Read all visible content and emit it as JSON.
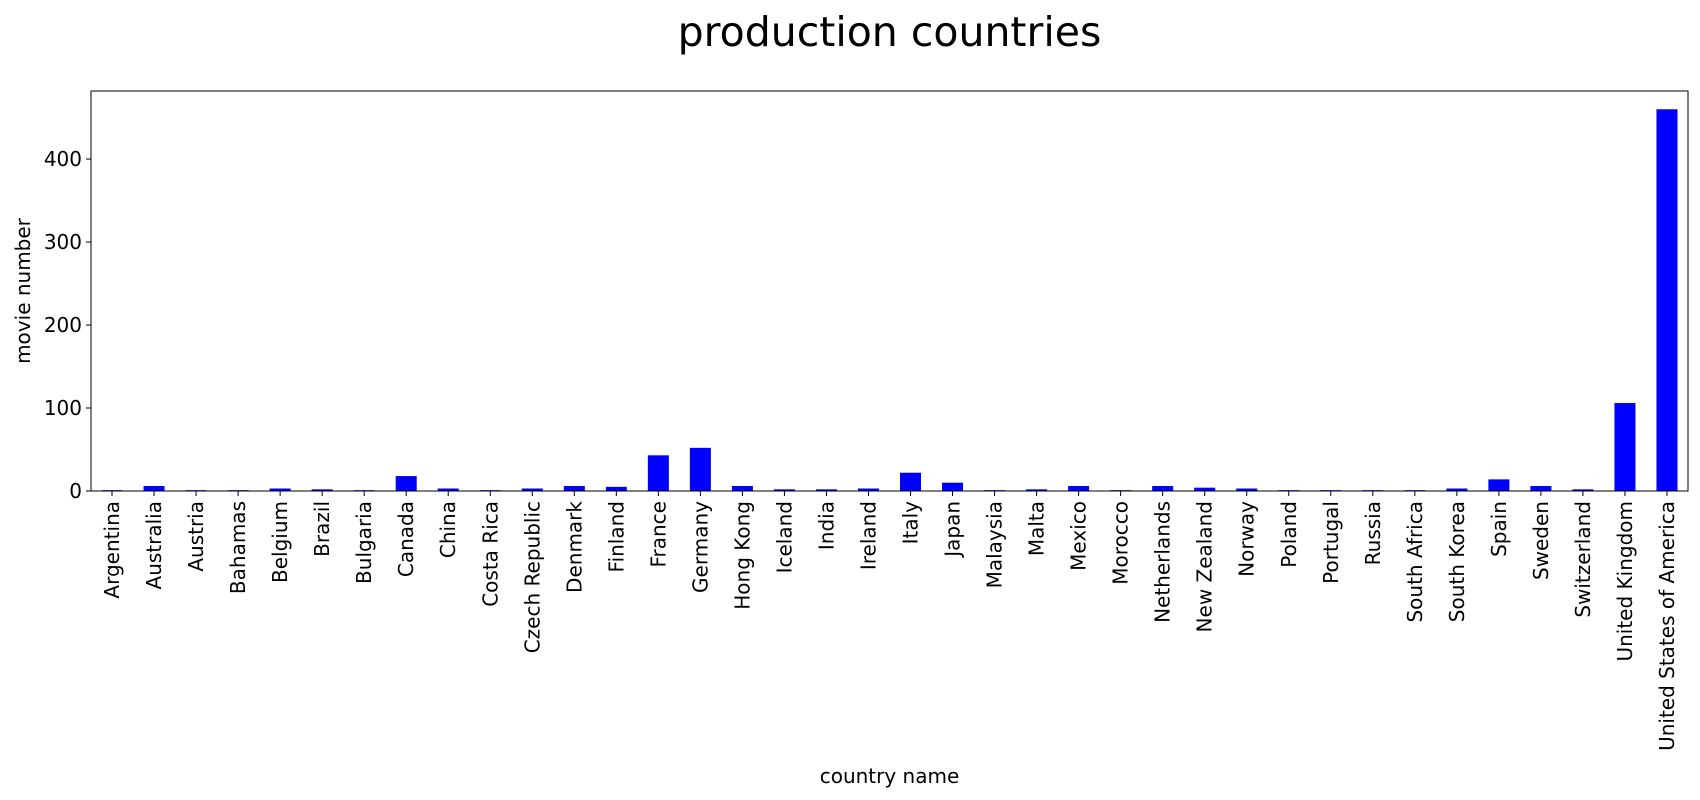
{
  "chart_data": {
    "type": "bar",
    "title": "production countries",
    "xlabel": "country name",
    "ylabel": "movie number",
    "categories": [
      "Argentina",
      "Australia",
      "Austria",
      "Bahamas",
      "Belgium",
      "Brazil",
      "Bulgaria",
      "Canada",
      "China",
      "Costa Rica",
      "Czech Republic",
      "Denmark",
      "Finland",
      "France",
      "Germany",
      "Hong Kong",
      "Iceland",
      "India",
      "Ireland",
      "Italy",
      "Japan",
      "Malaysia",
      "Malta",
      "Mexico",
      "Morocco",
      "Netherlands",
      "New Zealand",
      "Norway",
      "Poland",
      "Portugal",
      "Russia",
      "South Africa",
      "South Korea",
      "Spain",
      "Sweden",
      "Switzerland",
      "United Kingdom",
      "United States of America"
    ],
    "values": [
      1,
      6,
      1,
      1,
      3,
      2,
      1,
      18,
      3,
      1,
      3,
      6,
      5,
      43,
      52,
      6,
      2,
      2,
      3,
      22,
      10,
      1,
      2,
      6,
      1,
      6,
      4,
      3,
      1,
      1,
      1,
      1,
      3,
      14,
      6,
      2,
      106,
      460
    ],
    "yticks": [
      0,
      100,
      200,
      300,
      400
    ],
    "ylim": [
      0,
      482
    ],
    "bar_color": "#0000ff",
    "grid": false,
    "legend": "none"
  }
}
